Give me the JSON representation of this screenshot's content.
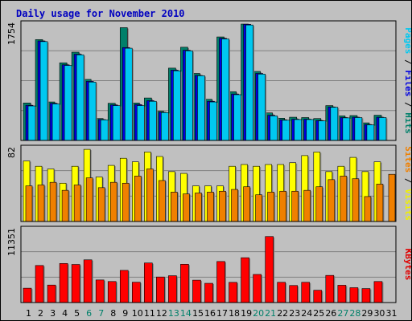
{
  "chart_data": {
    "type": "bar",
    "title": "Daily usage for November 2010",
    "x": [
      "1",
      "2",
      "3",
      "4",
      "5",
      "6",
      "7",
      "8",
      "9",
      "10",
      "11",
      "12",
      "13",
      "14",
      "15",
      "16",
      "17",
      "18",
      "19",
      "20",
      "21",
      "22",
      "23",
      "24",
      "25",
      "26",
      "27",
      "28",
      "29",
      "30",
      "31"
    ],
    "weekend_days": [
      "6",
      "7",
      "13",
      "14",
      "20",
      "21",
      "27",
      "28"
    ],
    "panels": [
      {
        "id": "hits",
        "ymax_label": "1754",
        "ylim": [
          0,
          1754
        ],
        "label_parts": [
          {
            "text": "Pages",
            "color": "#00c8f0"
          },
          {
            "text": " / ",
            "color": "#000000"
          },
          {
            "text": "Files",
            "color": "#0000e0"
          },
          {
            "text": " / ",
            "color": "#000000"
          },
          {
            "text": "Hits",
            "color": "#00806a"
          }
        ],
        "series": [
          {
            "name": "Hits",
            "color": "#00806a",
            "values": [
              565,
              1520,
              580,
              1170,
              1330,
              920,
              330,
              560,
              1700,
              565,
              640,
              440,
              1090,
              1405,
              1010,
              620,
              1560,
              735,
              1770,
              1040,
              415,
              335,
              350,
              345,
              330,
              525,
              370,
              375,
              265,
              380,
              null
            ]
          },
          {
            "name": "Files",
            "color": "#0000e0",
            "values": [
              530,
              1500,
              560,
              1140,
              1300,
              890,
              315,
              535,
              1400,
              540,
              600,
              425,
              1060,
              1360,
              980,
              590,
              1540,
              700,
              1750,
              1010,
              380,
              310,
              320,
              320,
              300,
              505,
              345,
              350,
              240,
              350,
              null
            ]
          },
          {
            "name": "Pages",
            "color": "#00c8f0",
            "values": [
              520,
              1490,
              550,
              1130,
              1290,
              880,
              310,
              525,
              1390,
              525,
              590,
              420,
              1050,
              1350,
              975,
              580,
              1530,
              690,
              1740,
              1000,
              370,
              305,
              315,
              315,
              295,
              500,
              340,
              345,
              235,
              345,
              null
            ]
          }
        ]
      },
      {
        "id": "visits",
        "ymax_label": "82",
        "ylim": [
          0,
          82
        ],
        "label_parts": [
          {
            "text": "Sites",
            "color": "#f08000"
          },
          {
            "text": " / ",
            "color": "#000000"
          },
          {
            "text": "Visits",
            "color": "#f0f000"
          }
        ],
        "series": [
          {
            "name": "Visits",
            "color": "#ffff00",
            "values": [
              68,
              62,
              59,
              43,
              62,
              81,
              50,
              63,
              71,
              67,
              78,
              73,
              56,
              54,
              40,
              40,
              40,
              62,
              64,
              62,
              64,
              64,
              66,
              74,
              78,
              56,
              62,
              72,
              56,
              67,
              null
            ]
          },
          {
            "name": "Sites",
            "color": "#f08000",
            "values": [
              40,
              41,
              44,
              35,
              41,
              49,
              38,
              44,
              43,
              51,
              59,
              46,
              33,
              31,
              32,
              33,
              34,
              36,
              39,
              30,
              33,
              34,
              34,
              35,
              39,
              47,
              51,
              48,
              28,
              42,
              53
            ]
          }
        ]
      },
      {
        "id": "kbytes",
        "ymax_label": "11351",
        "ylim": [
          0,
          11351
        ],
        "label_parts": [
          {
            "text": "KBytes",
            "color": "#e00000"
          }
        ],
        "series": [
          {
            "name": "KBytes",
            "color": "#ff0000",
            "values": [
              2230,
              5760,
              2720,
              6070,
              5920,
              6640,
              3510,
              3270,
              5000,
              3160,
              6150,
              3970,
              4170,
              5950,
              3480,
              2990,
              6380,
              3140,
              6970,
              4370,
              10260,
              3150,
              2650,
              3150,
              1910,
              4220,
              2690,
              2310,
              2170,
              3270,
              null
            ]
          }
        ]
      }
    ]
  }
}
